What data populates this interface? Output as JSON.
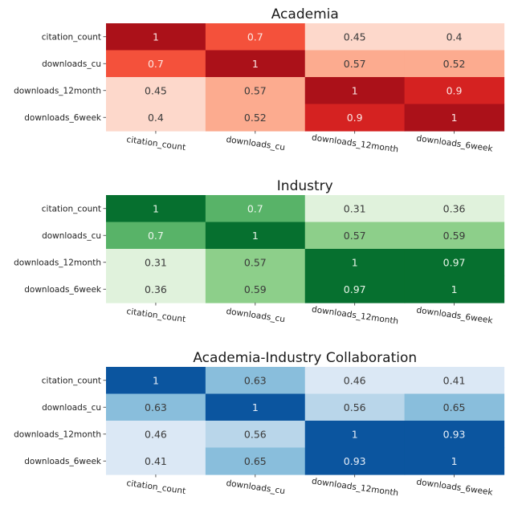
{
  "chart_data": [
    {
      "type": "heatmap",
      "title": "Academia",
      "colormap": "Reds",
      "x_categories": [
        "citation_count",
        "downloads_cu",
        "downloads_12month",
        "downloads_6week"
      ],
      "y_categories": [
        "citation_count",
        "downloads_cu",
        "downloads_12month",
        "downloads_6week"
      ],
      "values": [
        [
          1,
          0.7,
          0.45,
          0.4
        ],
        [
          0.7,
          1,
          0.57,
          0.52
        ],
        [
          0.45,
          0.57,
          1,
          0.9
        ],
        [
          0.4,
          0.52,
          0.9,
          1
        ]
      ],
      "labels": [
        [
          "1",
          "0.7",
          "0.45",
          "0.4"
        ],
        [
          "0.7",
          "1",
          "0.57",
          "0.52"
        ],
        [
          "0.45",
          "0.57",
          "1",
          "0.9"
        ],
        [
          "0.4",
          "0.52",
          "0.9",
          "1"
        ]
      ],
      "colors": [
        [
          "#ab1119",
          "#f4513b",
          "#fdd8cb",
          "#fdd8cb"
        ],
        [
          "#f4513b",
          "#ab1119",
          "#fcab8f",
          "#fcab8f"
        ],
        [
          "#fdd8cb",
          "#fcab8f",
          "#ab1119",
          "#d52221"
        ],
        [
          "#fdd8cb",
          "#fcab8f",
          "#d52221",
          "#ab1119"
        ]
      ],
      "text_colors": [
        [
          "#fbe8e6",
          "#fde8e3",
          "#3a3a3a",
          "#3a3a3a"
        ],
        [
          "#fde8e3",
          "#fbe8e6",
          "#3a3a3a",
          "#3a3a3a"
        ],
        [
          "#3a3a3a",
          "#3a3a3a",
          "#fbe8e6",
          "#fbe6e4"
        ],
        [
          "#3a3a3a",
          "#3a3a3a",
          "#fbe6e4",
          "#fbe8e6"
        ]
      ],
      "colorbar": false,
      "grid": false
    },
    {
      "type": "heatmap",
      "title": "Industry",
      "colormap": "Greens",
      "x_categories": [
        "citation_count",
        "downloads_cu",
        "downloads_12month",
        "downloads_6week"
      ],
      "y_categories": [
        "citation_count",
        "downloads_cu",
        "downloads_12month",
        "downloads_6week"
      ],
      "values": [
        [
          1,
          0.7,
          0.31,
          0.36
        ],
        [
          0.7,
          1,
          0.57,
          0.59
        ],
        [
          0.31,
          0.57,
          1,
          0.97
        ],
        [
          0.36,
          0.59,
          0.97,
          1
        ]
      ],
      "labels": [
        [
          "1",
          "0.7",
          "0.31",
          "0.36"
        ],
        [
          "0.7",
          "1",
          "0.57",
          "0.59"
        ],
        [
          "0.31",
          "0.57",
          "1",
          "0.97"
        ],
        [
          "0.36",
          "0.59",
          "0.97",
          "1"
        ]
      ],
      "colors": [
        [
          "#06702f",
          "#58b368",
          "#e0f2dc",
          "#e0f2dc"
        ],
        [
          "#58b368",
          "#06702f",
          "#8dcf8a",
          "#8dcf8a"
        ],
        [
          "#e0f2dc",
          "#8dcf8a",
          "#06702f",
          "#06702f"
        ],
        [
          "#e0f2dc",
          "#8dcf8a",
          "#06702f",
          "#06702f"
        ]
      ],
      "text_colors": [
        [
          "#e8f4e8",
          "#eef7ee",
          "#3a3a3a",
          "#3a3a3a"
        ],
        [
          "#eef7ee",
          "#e8f4e8",
          "#3a3a3a",
          "#3a3a3a"
        ],
        [
          "#3a3a3a",
          "#3a3a3a",
          "#e8f4e8",
          "#e8f4e8"
        ],
        [
          "#3a3a3a",
          "#3a3a3a",
          "#e8f4e8",
          "#e8f4e8"
        ]
      ],
      "colorbar": false,
      "grid": false
    },
    {
      "type": "heatmap",
      "title": "Academia-Industry Collaboration",
      "colormap": "Blues",
      "x_categories": [
        "citation_count",
        "downloads_cu",
        "downloads_12month",
        "downloads_6week"
      ],
      "y_categories": [
        "citation_count",
        "downloads_cu",
        "downloads_12month",
        "downloads_6week"
      ],
      "values": [
        [
          1,
          0.63,
          0.46,
          0.41
        ],
        [
          0.63,
          1,
          0.56,
          0.65
        ],
        [
          0.46,
          0.56,
          1,
          0.93
        ],
        [
          0.41,
          0.65,
          0.93,
          1
        ]
      ],
      "labels": [
        [
          "1",
          "0.63",
          "0.46",
          "0.41"
        ],
        [
          "0.63",
          "1",
          "0.56",
          "0.65"
        ],
        [
          "0.46",
          "0.56",
          "1",
          "0.93"
        ],
        [
          "0.41",
          "0.65",
          "0.93",
          "1"
        ]
      ],
      "colors": [
        [
          "#0b559f",
          "#89bedc",
          "#dbe8f5",
          "#dbe8f5"
        ],
        [
          "#89bedc",
          "#0b559f",
          "#b9d6ea",
          "#89bedc"
        ],
        [
          "#dbe8f5",
          "#b9d6ea",
          "#0b559f",
          "#0b559f"
        ],
        [
          "#dbe8f5",
          "#89bedc",
          "#0b559f",
          "#0b559f"
        ]
      ],
      "text_colors": [
        [
          "#e6eef8",
          "#3a3a3a",
          "#3a3a3a",
          "#3a3a3a"
        ],
        [
          "#3a3a3a",
          "#e6eef8",
          "#3a3a3a",
          "#3a3a3a"
        ],
        [
          "#3a3a3a",
          "#3a3a3a",
          "#e6eef8",
          "#e6eef8"
        ],
        [
          "#3a3a3a",
          "#3a3a3a",
          "#e6eef8",
          "#e6eef8"
        ]
      ],
      "colorbar": false,
      "grid": false
    }
  ]
}
